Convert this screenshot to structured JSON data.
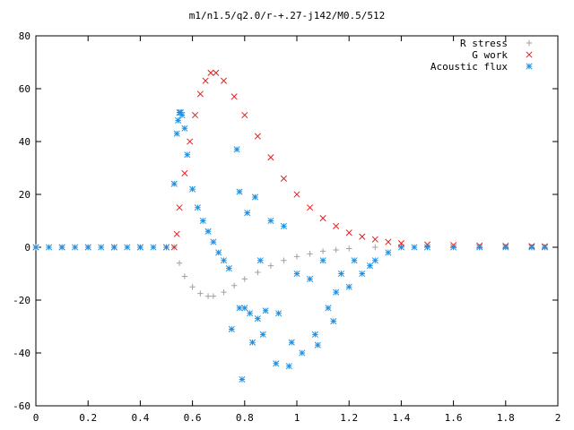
{
  "chart_data": {
    "type": "scatter",
    "title": "m1/n1.5/q2.0/r-+.27-j142/M0.5/512",
    "xlabel": "",
    "ylabel": "",
    "xlim": [
      0,
      2
    ],
    "ylim": [
      -60,
      80
    ],
    "x_ticks": [
      0,
      0.2,
      0.4,
      0.6,
      0.8,
      1,
      1.2,
      1.4,
      1.6,
      1.8,
      2
    ],
    "x_tick_labels": [
      "0",
      "0.2",
      "0.4",
      "0.6",
      "0.8",
      "1",
      "1.2",
      "1.4",
      "1.6",
      "1.8",
      "2"
    ],
    "y_ticks": [
      -60,
      -40,
      -20,
      0,
      20,
      40,
      60,
      80
    ],
    "y_tick_labels": [
      "-60",
      "-40",
      "-20",
      "0",
      "20",
      "40",
      "60",
      "80"
    ],
    "grid": false,
    "legend_position": "top-right",
    "series": [
      {
        "name": "R stress",
        "marker": "plus",
        "color": "#a0a0a0",
        "x": [
          0.0,
          0.1,
          0.2,
          0.3,
          0.4,
          0.5,
          0.53,
          0.55,
          0.57,
          0.6,
          0.63,
          0.66,
          0.68,
          0.72,
          0.76,
          0.8,
          0.85,
          0.9,
          0.95,
          1.0,
          1.05,
          1.1,
          1.15,
          1.2,
          1.3,
          1.4,
          1.5,
          1.6,
          1.7,
          1.8,
          1.9,
          1.95
        ],
        "y": [
          0,
          0,
          0,
          0,
          0,
          0,
          0,
          -6,
          -11,
          -15,
          -17.5,
          -18.5,
          -18.5,
          -17,
          -14.5,
          -12,
          -9.5,
          -7,
          -5,
          -3.5,
          -2.5,
          -1.5,
          -1,
          -0.5,
          0,
          0.3,
          0.3,
          0.2,
          0.1,
          0.1,
          0,
          0
        ]
      },
      {
        "name": "G work",
        "marker": "cross",
        "color": "#e02020",
        "x": [
          0.0,
          0.1,
          0.2,
          0.3,
          0.4,
          0.5,
          0.53,
          0.54,
          0.55,
          0.57,
          0.59,
          0.61,
          0.63,
          0.65,
          0.67,
          0.69,
          0.72,
          0.76,
          0.8,
          0.85,
          0.9,
          0.95,
          1.0,
          1.05,
          1.1,
          1.15,
          1.2,
          1.25,
          1.3,
          1.35,
          1.4,
          1.5,
          1.6,
          1.7,
          1.8,
          1.9,
          1.95
        ],
        "y": [
          0,
          0,
          0,
          0,
          0,
          0,
          0,
          5,
          15,
          28,
          40,
          50,
          58,
          63,
          66,
          66,
          63,
          57,
          50,
          42,
          34,
          26,
          20,
          15,
          11,
          8,
          5.5,
          4,
          3,
          2,
          1.5,
          1,
          0.8,
          0.6,
          0.5,
          0.4,
          0.3
        ]
      },
      {
        "name": "Acoustic flux",
        "marker": "star",
        "color": "#2090e0",
        "x": [
          0.0,
          0.05,
          0.1,
          0.15,
          0.2,
          0.25,
          0.3,
          0.35,
          0.4,
          0.45,
          0.5,
          0.53,
          0.54,
          0.545,
          0.55,
          0.555,
          0.56,
          0.57,
          0.58,
          0.6,
          0.62,
          0.64,
          0.66,
          0.68,
          0.7,
          0.72,
          0.74,
          0.75,
          0.77,
          0.78,
          0.78,
          0.79,
          0.8,
          0.81,
          0.82,
          0.83,
          0.84,
          0.85,
          0.86,
          0.87,
          0.88,
          0.9,
          0.92,
          0.93,
          0.95,
          0.97,
          0.98,
          1.0,
          1.02,
          1.05,
          1.07,
          1.08,
          1.1,
          1.12,
          1.14,
          1.15,
          1.17,
          1.2,
          1.22,
          1.25,
          1.28,
          1.3,
          1.35,
          1.4,
          1.45,
          1.5,
          1.6,
          1.7,
          1.8,
          1.9,
          1.95
        ],
        "y": [
          0,
          0,
          0,
          0,
          0,
          0,
          0,
          0,
          0,
          0,
          0,
          24,
          43,
          48,
          51,
          51,
          50,
          45,
          35,
          22,
          15,
          10,
          6,
          2,
          -2,
          -5,
          -8,
          -31,
          37,
          21,
          -23,
          -50,
          -23,
          13,
          -25,
          -36,
          19,
          -27,
          -5,
          -33,
          -24,
          10,
          -44,
          -25,
          8,
          -45,
          -36,
          -10,
          -40,
          -12,
          -33,
          -37,
          -5,
          -23,
          -28,
          -17,
          -10,
          -15,
          -5,
          -10,
          -7,
          -5,
          -2,
          0,
          0,
          0,
          0,
          0,
          0,
          0,
          0
        ]
      }
    ]
  }
}
